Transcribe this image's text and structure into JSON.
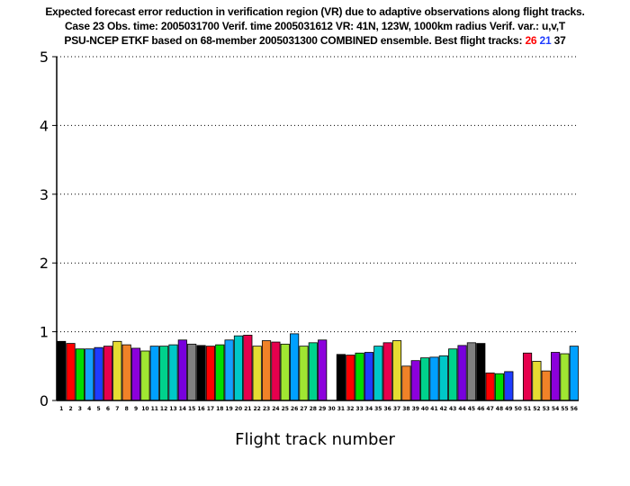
{
  "title_lines": [
    "Expected forecast error reduction in verification region (VR) due to adaptive observations along flight tracks.",
    "Case 23  Obs. time: 2005031700  Verif. time 2005031612  VR: 41N, 123W, 1000km radius  Verif. var.: u,v,T",
    "PSU-NCEP ETKF based on 68-member 2005031300 COMBINED ensemble.  Best flight tracks:"
  ],
  "best_tracks": [
    {
      "label": "26",
      "color": "#ff0000"
    },
    {
      "label": "21",
      "color": "#1f3cff"
    },
    {
      "label": "37",
      "color": "#000000"
    }
  ],
  "chart_data": {
    "type": "bar",
    "xlabel": "Flight track number",
    "ylabel": "",
    "ylim": [
      0,
      5
    ],
    "yticks": [
      0,
      1,
      2,
      3,
      4,
      5
    ],
    "grid": "horizontal dotted",
    "categories": [
      "1",
      "2",
      "3",
      "4",
      "5",
      "6",
      "7",
      "8",
      "9",
      "10",
      "11",
      "12",
      "13",
      "14",
      "15",
      "16",
      "17",
      "18",
      "19",
      "20",
      "21",
      "22",
      "23",
      "24",
      "25",
      "26",
      "27",
      "28",
      "29",
      "30",
      "31",
      "32",
      "33",
      "34",
      "35",
      "36",
      "37",
      "38",
      "39",
      "40",
      "41",
      "42",
      "43",
      "44",
      "45",
      "46",
      "47",
      "48",
      "49",
      "50",
      "51",
      "52",
      "53",
      "54",
      "55",
      "56"
    ],
    "values": [
      0.86,
      0.83,
      0.75,
      0.75,
      0.77,
      0.79,
      0.86,
      0.81,
      0.76,
      0.72,
      0.79,
      0.79,
      0.81,
      0.88,
      0.82,
      0.8,
      0.79,
      0.81,
      0.88,
      0.94,
      0.95,
      0.79,
      0.87,
      0.85,
      0.82,
      0.97,
      0.79,
      0.84,
      0.88,
      0.0,
      0.67,
      0.66,
      0.69,
      0.7,
      0.79,
      0.84,
      0.87,
      0.5,
      0.58,
      0.62,
      0.63,
      0.65,
      0.75,
      0.8,
      0.84,
      0.83,
      0.4,
      0.39,
      0.42,
      0.0,
      0.69,
      0.57,
      0.43,
      0.7,
      0.68,
      0.79
    ],
    "bar_colors": [
      "#000000",
      "#ff0000",
      "#00dc00",
      "#14a0ff",
      "#1e3cff",
      "#e6004d",
      "#e6dc32",
      "#f08228",
      "#8c00dc",
      "#a0e632",
      "#00a0ff",
      "#00d28c",
      "#00c8c8",
      "#7800dc",
      "#808080",
      "#000000",
      "#ff0000",
      "#00dc00",
      "#14a0ff",
      "#00c8c8",
      "#e6004d",
      "#e6dc32",
      "#f08228",
      "#e6004d",
      "#a0e632",
      "#00a0ff",
      "#a0e632",
      "#00d28c",
      "#8c00dc",
      "#000000",
      "#000000",
      "#ff0000",
      "#00dc00",
      "#1e3cff",
      "#00c8c8",
      "#e6004d",
      "#e6dc32",
      "#f08228",
      "#8c00dc",
      "#00d28c",
      "#00a0ff",
      "#00c8c8",
      "#00d28c",
      "#7800dc",
      "#808080",
      "#000000",
      "#ff0000",
      "#00dc00",
      "#1e3cff",
      "#000000",
      "#e6004d",
      "#e6dc32",
      "#f08228",
      "#8c00dc",
      "#a0e632",
      "#00a0ff"
    ]
  }
}
